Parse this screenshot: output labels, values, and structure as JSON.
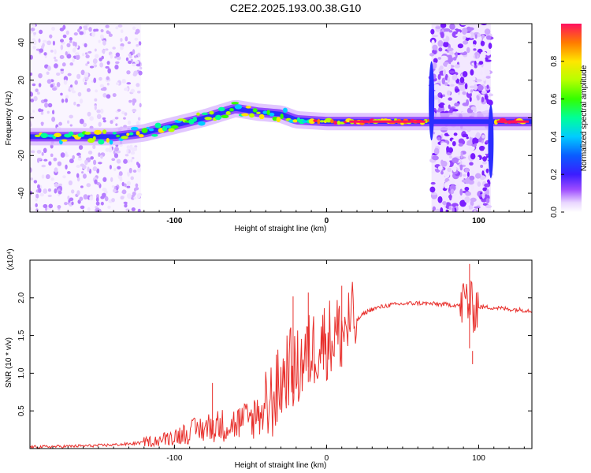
{
  "title": "C2E2.2025.193.00.38.G10",
  "chart_data": [
    {
      "type": "heatmap",
      "xlabel": "Height of straight line (km)",
      "ylabel": "Frequency (Hz)",
      "xlim": [
        -195,
        135
      ],
      "ylim": [
        -50,
        50
      ],
      "xticks": [
        -100,
        0,
        100
      ],
      "yticks": [
        -40,
        -20,
        0,
        20,
        40
      ],
      "colorbar": {
        "label": "Normalized spectral amplitude",
        "ticks": [
          "0.0",
          "0.2",
          "0.4",
          "0.6",
          "0.8"
        ],
        "range": [
          0,
          1
        ]
      },
      "ridge": [
        {
          "x": -195,
          "y": -10
        },
        {
          "x": -140,
          "y": -10
        },
        {
          "x": -120,
          "y": -8
        },
        {
          "x": -100,
          "y": -4
        },
        {
          "x": -80,
          "y": 0
        },
        {
          "x": -60,
          "y": 5
        },
        {
          "x": -45,
          "y": 3
        },
        {
          "x": -30,
          "y": 2
        },
        {
          "x": -20,
          "y": -1
        },
        {
          "x": 0,
          "y": -2
        },
        {
          "x": 30,
          "y": -2
        },
        {
          "x": 65,
          "y": -2
        },
        {
          "x": 110,
          "y": -2
        },
        {
          "x": 135,
          "y": -2
        }
      ]
    },
    {
      "type": "line",
      "xlabel": "Height of straight line (km)",
      "ylabel": "SNR (10 * v/v)",
      "yscale_label": "(x10⁴)",
      "xlim": [
        -195,
        135
      ],
      "ylim": [
        0,
        2.5
      ],
      "xticks": [
        -100,
        0,
        100
      ],
      "yticks": [
        "0.5",
        "1.0",
        "1.5",
        "2.0"
      ],
      "series": [
        {
          "color": "#e8302c",
          "x": [
            -195,
            -170,
            -150,
            -130,
            -120,
            -110,
            -100,
            -90,
            -80,
            -70,
            -60,
            -50,
            -40,
            -30,
            -25,
            -20,
            -15,
            -10,
            -5,
            0,
            5,
            10,
            15,
            20,
            25,
            30,
            40,
            50,
            60,
            70,
            80,
            88,
            92,
            94,
            96,
            98,
            100,
            110,
            120,
            135
          ],
          "y": [
            0.02,
            0.03,
            0.04,
            0.06,
            0.08,
            0.1,
            0.15,
            0.2,
            0.25,
            0.28,
            0.3,
            0.35,
            0.5,
            0.85,
            1.1,
            1.0,
            1.2,
            1.3,
            1.4,
            1.45,
            1.5,
            1.55,
            1.65,
            1.7,
            1.8,
            1.85,
            1.9,
            1.92,
            1.93,
            1.92,
            1.91,
            1.9,
            2.0,
            1.9,
            1.85,
            1.9,
            1.88,
            1.87,
            1.85,
            1.83
          ]
        }
      ],
      "peaks": [
        {
          "x": -75,
          "y": 0.87
        },
        {
          "x": -22,
          "y": 2.02
        },
        {
          "x": -12,
          "y": 2.07
        },
        {
          "x": 10,
          "y": 2.16
        },
        {
          "x": 94,
          "y": 2.45
        },
        {
          "x": 96,
          "y": 1.12
        }
      ]
    }
  ]
}
